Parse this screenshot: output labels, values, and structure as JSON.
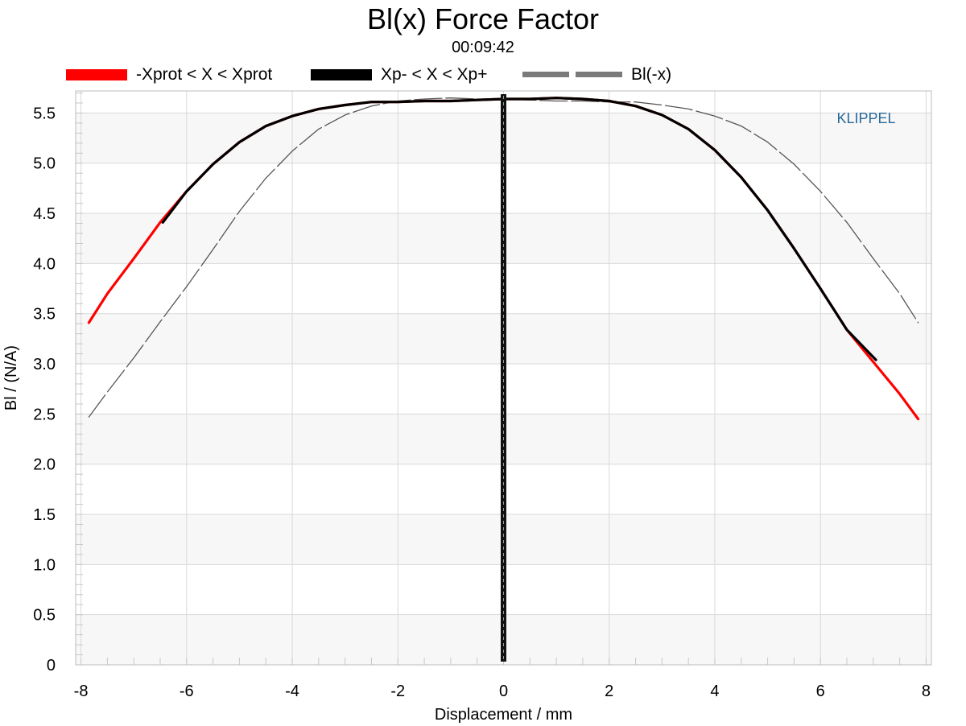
{
  "chart_data": {
    "type": "line",
    "title": "Bl(x) Force Factor",
    "subtitle": "00:09:42",
    "xlabel": "Displacement / mm",
    "ylabel": "Bl / (N/A)",
    "xlim": [
      -8.1,
      8.1
    ],
    "ylim": [
      0,
      5.72
    ],
    "xticks": [
      "-8",
      "-6",
      "-4",
      "-2",
      "0",
      "2",
      "4",
      "6",
      "8"
    ],
    "yticks": [
      "0",
      "0.5",
      "1.0",
      "1.5",
      "2.0",
      "2.5",
      "3.0",
      "3.5",
      "4.0",
      "4.5",
      "5.0",
      "5.5"
    ],
    "grid": true,
    "legend_position": "top",
    "brand_label": "KLIPPEL",
    "vertical_marker_x": 0,
    "series": [
      {
        "name": "-Xprot < X < Xprot",
        "color": "#ff0000",
        "style": "solid",
        "x": [
          -7.85,
          -7.5,
          -7.0,
          -6.5,
          -6.0,
          -5.5,
          -5.0,
          -4.5,
          -4.0,
          -3.5,
          -3.0,
          -2.5,
          -2.0,
          -1.5,
          -1.0,
          -0.5,
          0,
          0.5,
          1.0,
          1.5,
          2.0,
          2.5,
          3.0,
          3.5,
          4.0,
          4.5,
          5.0,
          5.5,
          6.0,
          6.5,
          7.0,
          7.5,
          7.85
        ],
        "y": [
          3.41,
          3.7,
          4.05,
          4.41,
          4.72,
          4.99,
          5.21,
          5.37,
          5.47,
          5.54,
          5.58,
          5.61,
          5.61,
          5.62,
          5.62,
          5.63,
          5.64,
          5.64,
          5.65,
          5.64,
          5.62,
          5.57,
          5.48,
          5.34,
          5.13,
          4.86,
          4.53,
          4.15,
          3.75,
          3.34,
          3.02,
          2.7,
          2.45
        ]
      },
      {
        "name": "Xp- < X < Xp+",
        "color": "#000000",
        "style": "solid",
        "x": [
          -6.45,
          -6.0,
          -5.5,
          -5.0,
          -4.5,
          -4.0,
          -3.5,
          -3.0,
          -2.5,
          -2.0,
          -1.5,
          -1.0,
          -0.5,
          0,
          0.5,
          1.0,
          1.5,
          2.0,
          2.5,
          3.0,
          3.5,
          4.0,
          4.5,
          5.0,
          5.5,
          6.0,
          6.5,
          7.05
        ],
        "y": [
          4.41,
          4.72,
          4.99,
          5.21,
          5.37,
          5.47,
          5.54,
          5.58,
          5.61,
          5.61,
          5.62,
          5.62,
          5.63,
          5.64,
          5.64,
          5.65,
          5.64,
          5.62,
          5.57,
          5.48,
          5.34,
          5.13,
          4.86,
          4.53,
          4.15,
          3.75,
          3.34,
          3.04
        ]
      },
      {
        "name": "Bl(-x)",
        "color": "#555555",
        "style": "dashed",
        "x": [
          -7.85,
          -7.5,
          -7.0,
          -6.5,
          -6.0,
          -5.5,
          -5.0,
          -4.5,
          -4.0,
          -3.5,
          -3.0,
          -2.5,
          -2.0,
          -1.5,
          -1.0,
          -0.5,
          0,
          0.5,
          1.0,
          1.5,
          2.0,
          2.5,
          3.0,
          3.5,
          4.0,
          4.5,
          5.0,
          5.5,
          6.0,
          6.5,
          7.0,
          7.5,
          7.85
        ],
        "y": [
          2.47,
          2.72,
          3.06,
          3.42,
          3.77,
          4.14,
          4.52,
          4.85,
          5.12,
          5.34,
          5.48,
          5.57,
          5.62,
          5.64,
          5.65,
          5.64,
          5.64,
          5.63,
          5.62,
          5.62,
          5.61,
          5.61,
          5.58,
          5.54,
          5.47,
          5.37,
          5.21,
          4.99,
          4.72,
          4.41,
          4.05,
          3.7,
          3.41
        ]
      }
    ]
  }
}
